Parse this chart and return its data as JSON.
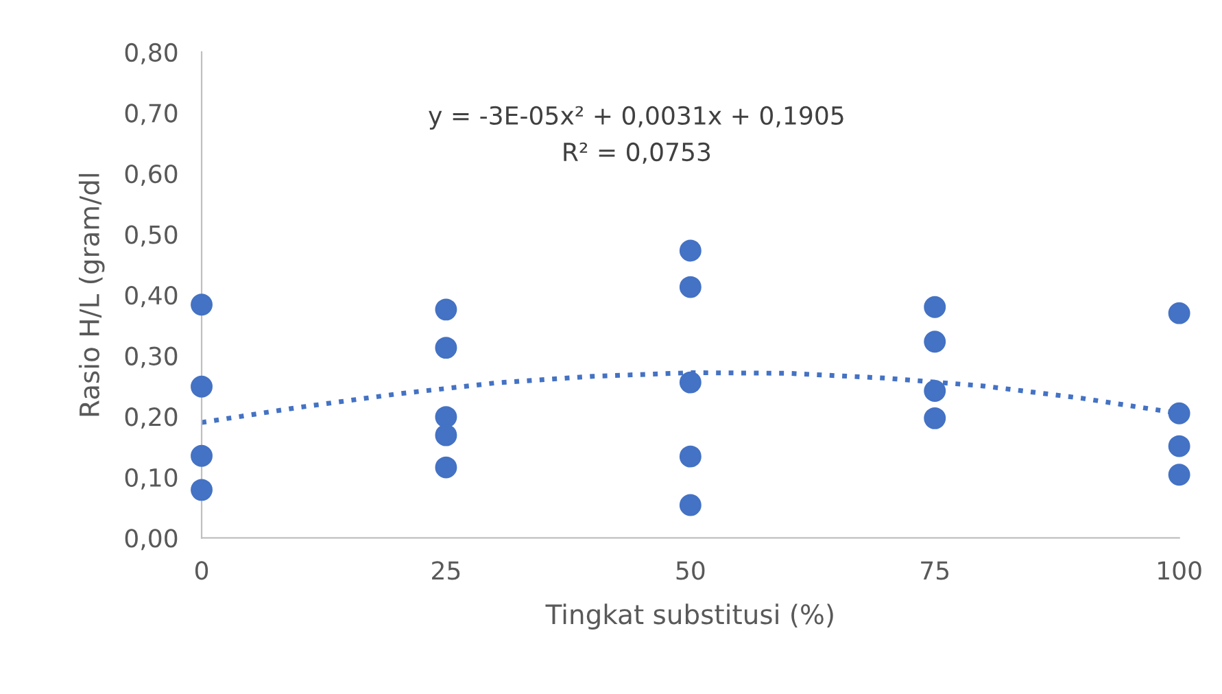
{
  "chart_data": {
    "type": "scatter",
    "xlabel": "Tingkat substitusi (%)",
    "ylabel": "Rasio H/L (gram/dl",
    "annotations": [
      "y = -3E-05x² + 0,0031x + 0,1905",
      "R² = 0,0753"
    ],
    "series": [
      {
        "color": "#4472c4",
        "marker": "circle",
        "x": [
          0,
          0,
          0,
          0,
          25,
          25,
          25,
          25,
          25,
          50,
          50,
          50,
          50,
          50,
          75,
          75,
          75,
          75,
          100,
          100,
          100,
          100
        ],
        "values": [
          0.384,
          0.249,
          0.135,
          0.079,
          0.376,
          0.313,
          0.199,
          0.169,
          0.116,
          0.473,
          0.413,
          0.256,
          0.134,
          0.054,
          0.38,
          0.323,
          0.242,
          0.197,
          0.37,
          0.205,
          0.151,
          0.104
        ]
      },
      {
        "type": "line",
        "color": "#4472c4",
        "line_style": "dotted",
        "marker": "none",
        "x": [
          0,
          10,
          20,
          30,
          40,
          50,
          60,
          70,
          80,
          90,
          100
        ],
        "values": [
          0.19,
          0.215,
          0.237,
          0.255,
          0.266,
          0.272,
          0.271,
          0.263,
          0.25,
          0.23,
          0.205
        ]
      }
    ],
    "xlim": [
      0,
      100
    ],
    "xticks": [
      0,
      25,
      50,
      75,
      100
    ],
    "ylim": [
      0,
      0.8
    ],
    "yticks": [
      {
        "value": 0,
        "label": "0,00"
      },
      {
        "value": 0.1,
        "label": "0,10"
      },
      {
        "value": 0.2,
        "label": "0,20"
      },
      {
        "value": 0.3,
        "label": "0,30"
      },
      {
        "value": 0.4,
        "label": "0,40"
      },
      {
        "value": 0.5,
        "label": "0,50"
      },
      {
        "value": 0.6,
        "label": "0,60"
      },
      {
        "value": 0.7,
        "label": "0,70"
      },
      {
        "value": 0.8,
        "label": "0,80"
      }
    ],
    "grid": false,
    "legend": false
  }
}
